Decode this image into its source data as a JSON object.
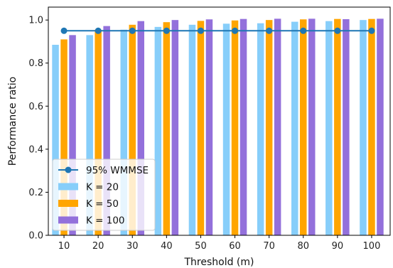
{
  "chart_data": {
    "type": "bar",
    "categories": [
      "10",
      "20",
      "30",
      "40",
      "50",
      "60",
      "70",
      "80",
      "90",
      "100"
    ],
    "series": [
      {
        "name": "K = 20",
        "type": "bar",
        "color": "#87CEFA",
        "values": [
          0.885,
          0.93,
          0.955,
          0.968,
          0.978,
          0.983,
          0.985,
          0.992,
          0.995,
          1.0
        ]
      },
      {
        "name": "K = 50",
        "type": "bar",
        "color": "#FFA500",
        "values": [
          0.91,
          0.955,
          0.978,
          0.99,
          0.996,
          0.998,
          1.0,
          1.003,
          1.005,
          1.005
        ]
      },
      {
        "name": "K = 100",
        "type": "bar",
        "color": "#9370DB",
        "values": [
          0.93,
          0.972,
          0.995,
          1.0,
          1.003,
          1.005,
          1.006,
          1.006,
          1.004,
          1.006
        ]
      },
      {
        "name": "95% WMMSE",
        "type": "line",
        "color": "#1F77B4",
        "values": [
          0.95,
          0.95,
          0.95,
          0.95,
          0.95,
          0.95,
          0.95,
          0.95,
          0.95,
          0.95
        ]
      }
    ],
    "xlabel": "Threshold (m)",
    "ylabel": "Performance ratio",
    "ylim": [
      0,
      1.06
    ],
    "yticks": [
      "0.0",
      "0.2",
      "0.4",
      "0.6",
      "0.8",
      "1.0"
    ],
    "grid": false,
    "legend_position": "lower-left",
    "legend_order": [
      "95% WMMSE",
      "K = 20",
      "K = 50",
      "K = 100"
    ]
  }
}
